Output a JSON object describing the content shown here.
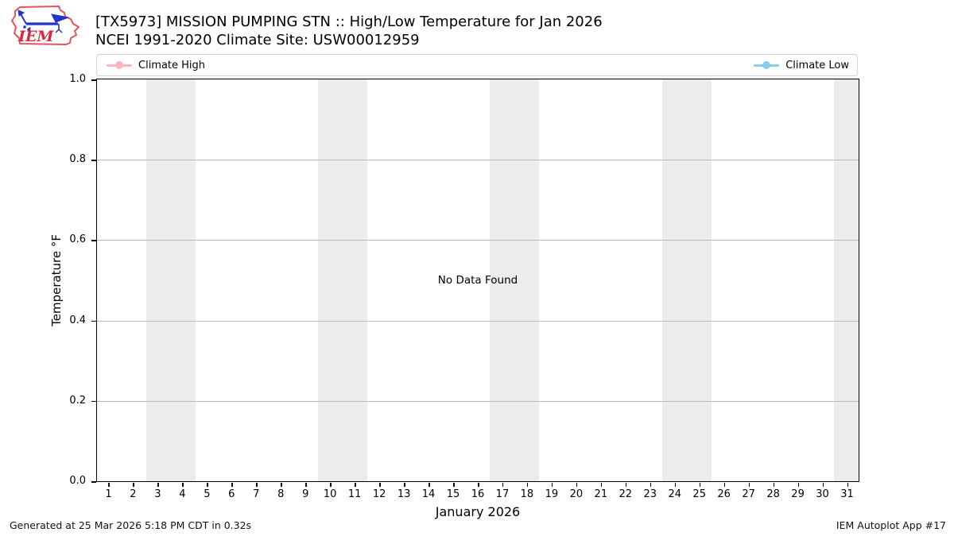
{
  "logo": {
    "text": "IEM"
  },
  "header": {
    "title": "[TX5973] MISSION PUMPING STN :: High/Low Temperature for Jan 2026",
    "subtitle": "NCEI 1991-2020 Climate Site: USW00012959"
  },
  "legend": {
    "items": [
      {
        "label": "Climate High",
        "color": "#ffb3c1"
      },
      {
        "label": "Climate Low",
        "color": "#87ceeb"
      }
    ]
  },
  "chart_data": {
    "type": "line",
    "title": "[TX5973] MISSION PUMPING STN :: High/Low Temperature for Jan 2026",
    "subtitle": "NCEI 1991-2020 Climate Site: USW00012959",
    "xlabel": "January 2026",
    "ylabel": "Temperature °F",
    "xlim": [
      0.5,
      31.5
    ],
    "ylim": [
      0.0,
      1.0
    ],
    "grid": true,
    "legend_position": "top",
    "annotation": "No Data Found",
    "x_ticks": [
      1,
      2,
      3,
      4,
      5,
      6,
      7,
      8,
      9,
      10,
      11,
      12,
      13,
      14,
      15,
      16,
      17,
      18,
      19,
      20,
      21,
      22,
      23,
      24,
      25,
      26,
      27,
      28,
      29,
      30,
      31
    ],
    "y_ticks": [
      {
        "value": 0.0,
        "label": "0.0"
      },
      {
        "value": 0.2,
        "label": "0.2"
      },
      {
        "value": 0.4,
        "label": "0.4"
      },
      {
        "value": 0.6,
        "label": "0.6"
      },
      {
        "value": 0.8,
        "label": "0.8"
      },
      {
        "value": 1.0,
        "label": "1.0"
      }
    ],
    "weekend_shading_days": [
      [
        3,
        4
      ],
      [
        10,
        11
      ],
      [
        17,
        18
      ],
      [
        24,
        25
      ],
      [
        31,
        31
      ]
    ],
    "shading_color": "#ececec",
    "series": [
      {
        "name": "Climate High",
        "color": "#ffb3c1",
        "x": [],
        "y": []
      },
      {
        "name": "Climate Low",
        "color": "#87ceeb",
        "x": [],
        "y": []
      }
    ]
  },
  "footer": {
    "generated": "Generated at 25 Mar 2026 5:18 PM CDT in 0.32s",
    "app": "IEM Autoplot App #17"
  }
}
